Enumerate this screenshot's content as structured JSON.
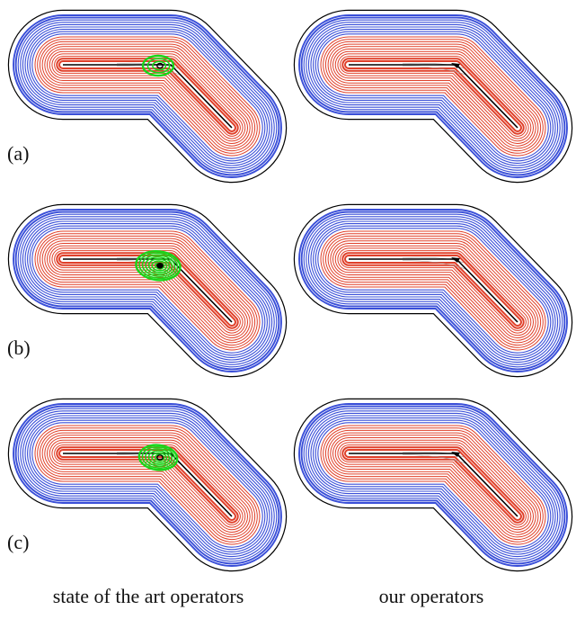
{
  "row_labels": [
    "(a)",
    "(b)",
    "(c)"
  ],
  "captions": {
    "left": "state of the art operators",
    "right": "our operators"
  },
  "colors": {
    "outer_boundary": "#000000",
    "blue_contours": "#3a4fd8",
    "red_contours": "#e0402a",
    "green_vortex": "#19d619",
    "skeleton": "#000000",
    "faint_streamline": "#9a9a9a"
  },
  "panels": [
    {
      "row": 0,
      "variant": "state-of-the-art",
      "has_vortex": true,
      "vortex_size": 1.0
    },
    {
      "row": 0,
      "variant": "ours",
      "has_vortex": false
    },
    {
      "row": 1,
      "variant": "state-of-the-art",
      "has_vortex": true,
      "vortex_size": 1.45
    },
    {
      "row": 1,
      "variant": "ours",
      "has_vortex": false
    },
    {
      "row": 2,
      "variant": "state-of-the-art",
      "has_vortex": true,
      "vortex_size": 1.25
    },
    {
      "row": 2,
      "variant": "ours",
      "has_vortex": false
    }
  ]
}
